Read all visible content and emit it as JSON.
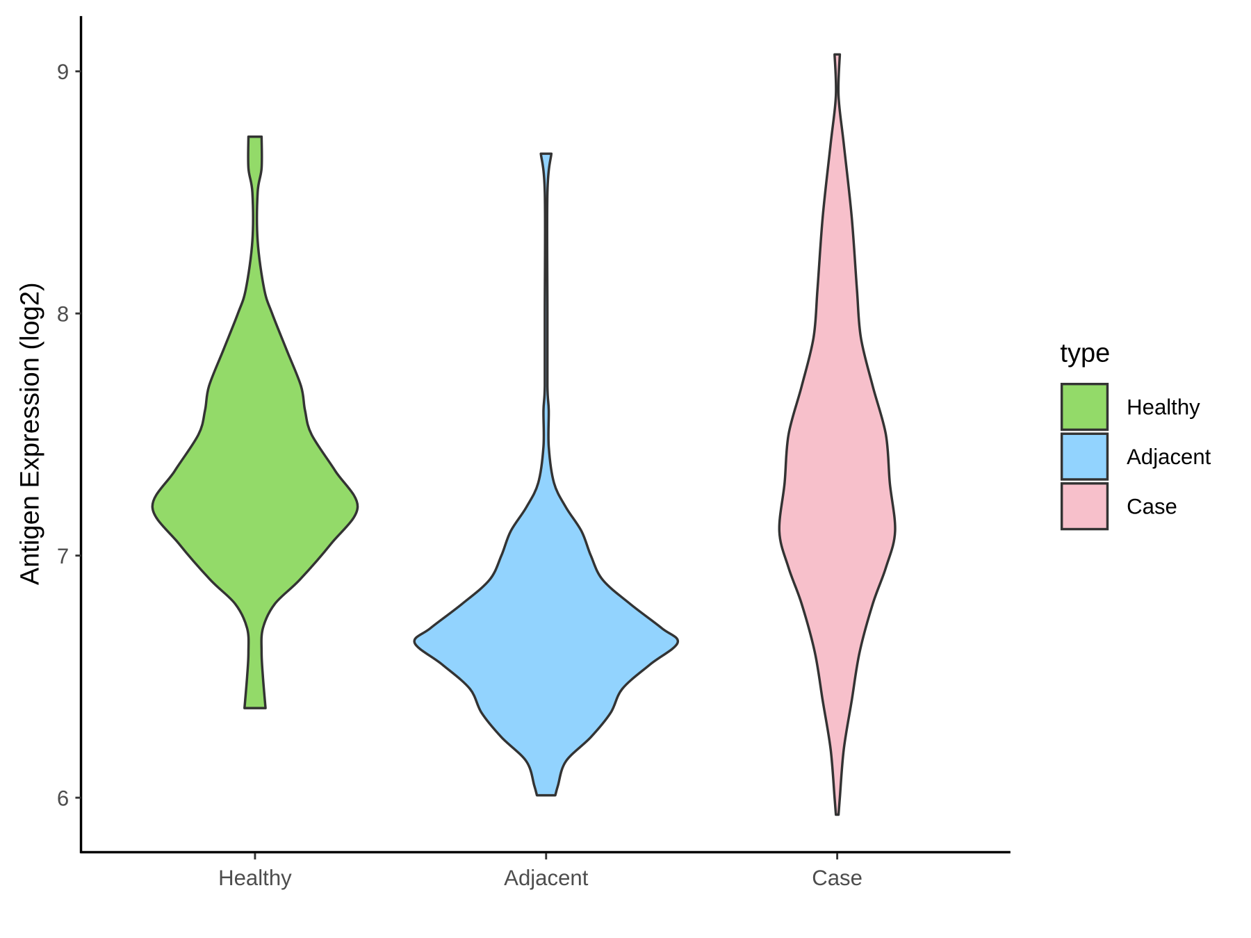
{
  "chart_data": {
    "type": "violin",
    "title": "",
    "xlabel": "",
    "ylabel": "Antigen Expression (log2)",
    "ylim": [
      5.75,
      9.25
    ],
    "yticks": [
      "6",
      "7",
      "8",
      "9"
    ],
    "categories": [
      "Healthy",
      "Adjacent",
      "Case"
    ],
    "legend": {
      "title": "type",
      "position": "right",
      "entries": [
        "Healthy",
        "Adjacent",
        "Case"
      ]
    },
    "colors": {
      "Healthy": "#93DA69",
      "Adjacent": "#92D3FE",
      "Case": "#F7C0CB",
      "outline": "#333333"
    },
    "series": [
      {
        "name": "Healthy",
        "min": 6.37,
        "max": 8.73,
        "density_profile": [
          [
            8.73,
            0.05
          ],
          [
            8.6,
            0.05
          ],
          [
            8.5,
            0.02
          ],
          [
            8.3,
            0.02
          ],
          [
            8.1,
            0.07
          ],
          [
            8.0,
            0.13
          ],
          [
            7.85,
            0.24
          ],
          [
            7.7,
            0.35
          ],
          [
            7.6,
            0.38
          ],
          [
            7.5,
            0.43
          ],
          [
            7.35,
            0.61
          ],
          [
            7.2,
            0.78
          ],
          [
            7.05,
            0.58
          ],
          [
            6.9,
            0.34
          ],
          [
            6.8,
            0.15
          ],
          [
            6.7,
            0.06
          ],
          [
            6.6,
            0.05
          ],
          [
            6.5,
            0.06
          ],
          [
            6.37,
            0.08
          ]
        ]
      },
      {
        "name": "Adjacent",
        "min": 6.01,
        "max": 8.66,
        "density_profile": [
          [
            8.66,
            0.04
          ],
          [
            8.5,
            0.01
          ],
          [
            8.0,
            0.01
          ],
          [
            7.7,
            0.01
          ],
          [
            7.6,
            0.02
          ],
          [
            7.45,
            0.02
          ],
          [
            7.3,
            0.06
          ],
          [
            7.2,
            0.15
          ],
          [
            7.1,
            0.27
          ],
          [
            7.0,
            0.34
          ],
          [
            6.9,
            0.43
          ],
          [
            6.8,
            0.64
          ],
          [
            6.7,
            0.88
          ],
          [
            6.64,
            1.0
          ],
          [
            6.55,
            0.79
          ],
          [
            6.45,
            0.58
          ],
          [
            6.35,
            0.49
          ],
          [
            6.25,
            0.34
          ],
          [
            6.15,
            0.15
          ],
          [
            6.05,
            0.09
          ],
          [
            6.01,
            0.07
          ]
        ]
      },
      {
        "name": "Case",
        "min": 5.93,
        "max": 9.07,
        "density_profile": [
          [
            9.07,
            0.02
          ],
          [
            8.9,
            0.01
          ],
          [
            8.7,
            0.05
          ],
          [
            8.4,
            0.11
          ],
          [
            8.1,
            0.15
          ],
          [
            7.9,
            0.18
          ],
          [
            7.7,
            0.27
          ],
          [
            7.5,
            0.37
          ],
          [
            7.3,
            0.4
          ],
          [
            7.1,
            0.44
          ],
          [
            6.95,
            0.37
          ],
          [
            6.8,
            0.27
          ],
          [
            6.6,
            0.17
          ],
          [
            6.4,
            0.11
          ],
          [
            6.2,
            0.05
          ],
          [
            6.0,
            0.02
          ],
          [
            5.93,
            0.01
          ]
        ]
      }
    ]
  }
}
